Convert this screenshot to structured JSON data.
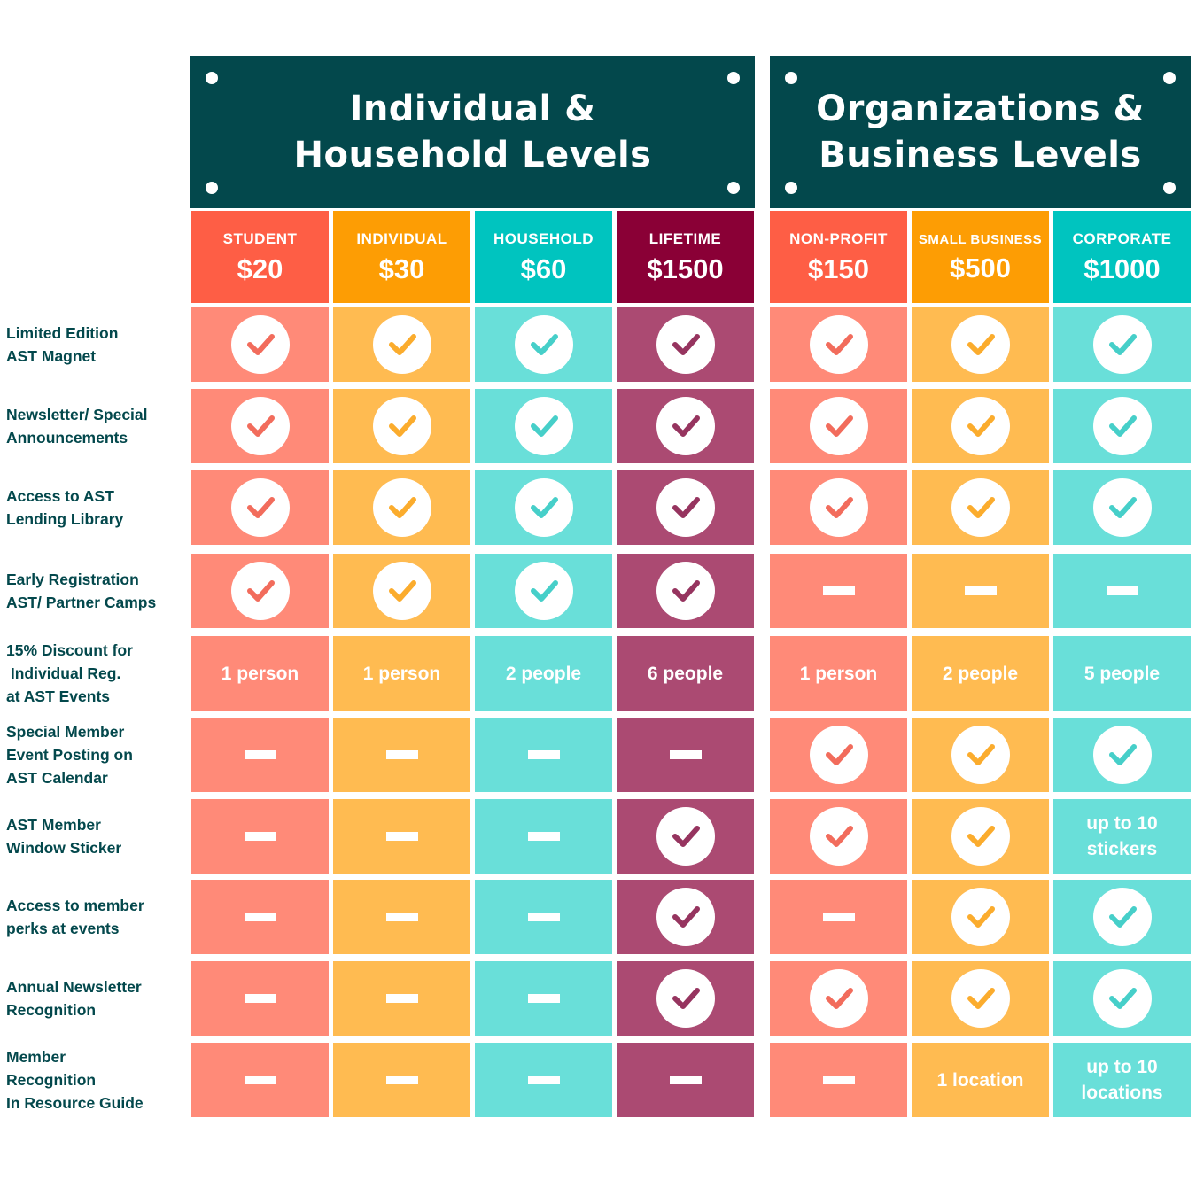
{
  "panels": [
    {
      "title": "Individual &\nHousehold Levels"
    },
    {
      "title": "Organizations &\nBusiness Levels"
    }
  ],
  "levels": [
    {
      "name": "STUDENT",
      "price": "$20",
      "header_color": "#fe5e45",
      "cell_color": "#ff8a78",
      "check_color": "#f26c5c"
    },
    {
      "name": "INDIVIDUAL",
      "price": "$30",
      "header_color": "#fd9d04",
      "cell_color": "#ffbb51",
      "check_color": "#fbac2d"
    },
    {
      "name": "HOUSEHOLD",
      "price": "$60",
      "header_color": "#00c4bf",
      "cell_color": "#69dfd9",
      "check_color": "#46cfc9"
    },
    {
      "name": "LIFETIME",
      "price": "$1500",
      "header_color": "#8a0036",
      "cell_color": "#ab4a72",
      "check_color": "#96345f"
    },
    {
      "name": "NON-PROFIT",
      "price": "$150",
      "header_color": "#fe5e45",
      "cell_color": "#ff8a78",
      "check_color": "#f26c5c"
    },
    {
      "name": "SMALL BUSINESS",
      "price": "$500",
      "header_color": "#fd9d04",
      "cell_color": "#ffbb51",
      "check_color": "#fbac2d"
    },
    {
      "name": "CORPORATE",
      "price": "$1000",
      "header_color": "#00c4bf",
      "cell_color": "#69dfd9",
      "check_color": "#46cfc9"
    }
  ],
  "rows": [
    {
      "label": "Limited Edition\nAST Magnet",
      "cells": [
        "check",
        "check",
        "check",
        "check",
        "check",
        "check",
        "check"
      ]
    },
    {
      "label": "Newsletter/ Special\nAnnouncements",
      "cells": [
        "check",
        "check",
        "check",
        "check",
        "check",
        "check",
        "check"
      ]
    },
    {
      "label": "Access to AST\nLending Library",
      "cells": [
        "check",
        "check",
        "check",
        "check",
        "check",
        "check",
        "check"
      ]
    },
    {
      "label": "Early Registration\nAST/ Partner Camps",
      "cells": [
        "check",
        "check",
        "check",
        "check",
        "dash",
        "dash",
        "dash"
      ]
    },
    {
      "label": "15% Discount for\n Individual Reg.\nat AST Events",
      "cells": [
        "1 person",
        "1 person",
        "2 people",
        "6 people",
        "1 person",
        "2 people",
        "5 people"
      ]
    },
    {
      "label": "Special Member\nEvent Posting on\nAST Calendar",
      "cells": [
        "dash",
        "dash",
        "dash",
        "dash",
        "check",
        "check",
        "check"
      ]
    },
    {
      "label": "AST Member\nWindow Sticker",
      "cells": [
        "dash",
        "dash",
        "dash",
        "check",
        "check",
        "check",
        "up to 10\nstickers"
      ]
    },
    {
      "label": "Access to member\nperks at events",
      "cells": [
        "dash",
        "dash",
        "dash",
        "check",
        "dash",
        "check",
        "check"
      ]
    },
    {
      "label": "Annual Newsletter\nRecognition",
      "cells": [
        "dash",
        "dash",
        "dash",
        "check",
        "check",
        "check",
        "check"
      ]
    },
    {
      "label": "Member\nRecognition\nIn Resource Guide",
      "cells": [
        "dash",
        "dash",
        "dash",
        "dash",
        "dash",
        "1 location",
        "up to 10\nlocations"
      ]
    }
  ]
}
